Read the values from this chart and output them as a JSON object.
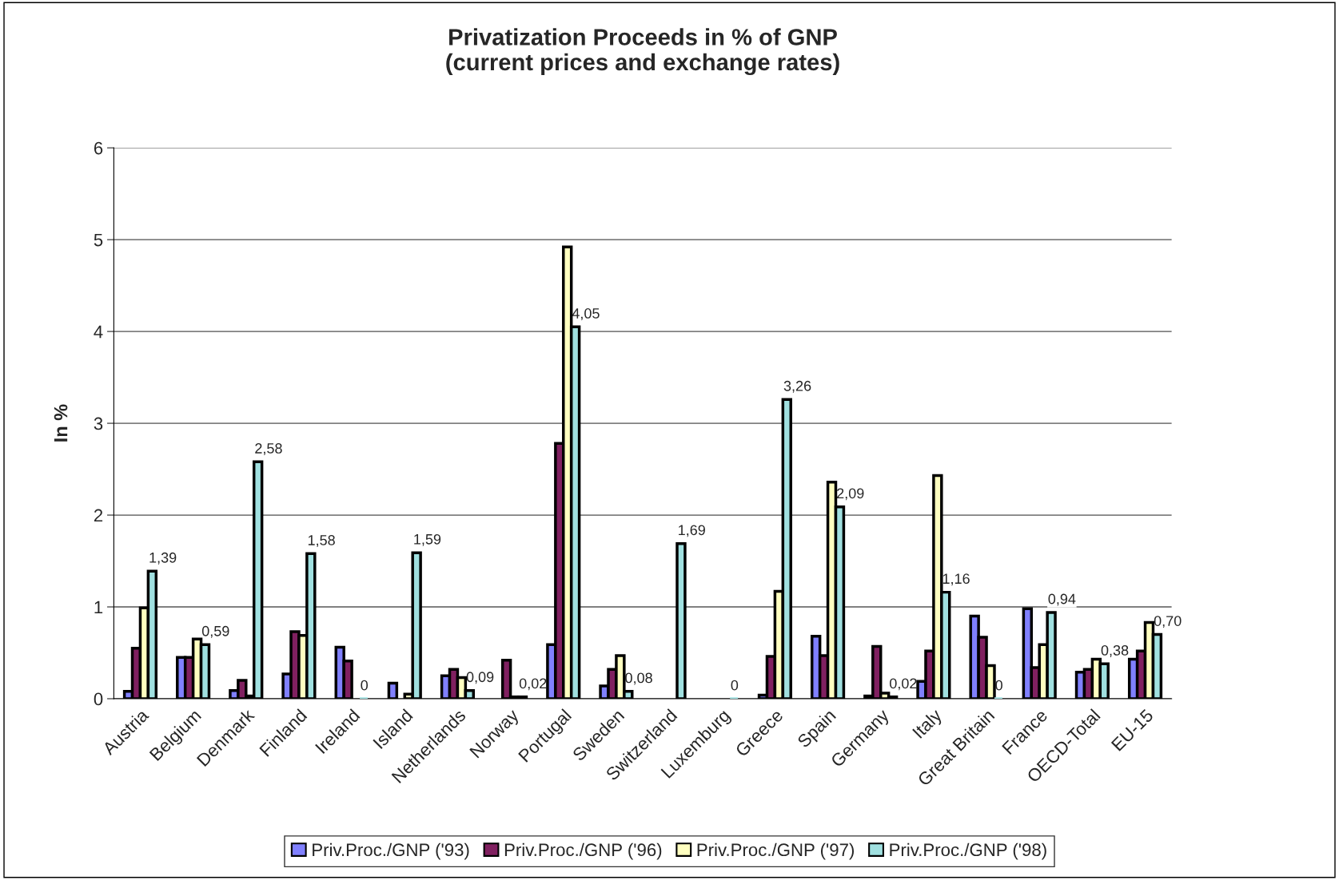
{
  "chart_data": {
    "type": "bar",
    "title": "Privatization Proceeds in % of GNP\n(current prices and exchange rates)",
    "ylabel": "In %",
    "categories": [
      "Austria",
      "Belgium",
      "Denmark",
      "Finland",
      "Ireland",
      "Island",
      "Netherlands",
      "Norway",
      "Portugal",
      "Sweden",
      "Switzerland",
      "Luxemburg",
      "Greece",
      "Spain",
      "Germany",
      "Italy",
      "Great Britain",
      "France",
      "OECD-Total",
      "EU-15"
    ],
    "series": [
      {
        "name": "Priv.Proc./GNP ('93)",
        "color": "#8080ff",
        "values": [
          0.08,
          0.45,
          0.09,
          0.27,
          0.56,
          0.17,
          0.25,
          null,
          0.59,
          0.14,
          null,
          null,
          0.04,
          0.68,
          0.03,
          0.19,
          0.9,
          0.98,
          0.29,
          0.43
        ]
      },
      {
        "name": "Priv.Proc./GNP ('96)",
        "color": "#802060",
        "values": [
          0.55,
          0.45,
          0.2,
          0.73,
          0.41,
          null,
          0.32,
          0.42,
          2.78,
          0.32,
          null,
          null,
          0.46,
          0.47,
          0.57,
          0.52,
          0.67,
          0.34,
          0.32,
          0.52
        ]
      },
      {
        "name": "Priv.Proc./GNP ('97)",
        "color": "#ffffc0",
        "values": [
          0.99,
          0.65,
          0.03,
          0.69,
          null,
          0.05,
          0.23,
          0.02,
          4.92,
          0.47,
          null,
          null,
          1.17,
          2.36,
          0.06,
          2.43,
          0.36,
          0.59,
          0.43,
          0.83
        ]
      },
      {
        "name": "Priv.Proc./GNP ('98)",
        "color": "#a0e0e0",
        "values": [
          1.39,
          0.59,
          2.58,
          1.58,
          0,
          1.59,
          0.09,
          0.02,
          4.05,
          0.08,
          1.69,
          0,
          3.26,
          2.09,
          0.02,
          1.16,
          0,
          0.94,
          0.38,
          0.7
        ],
        "value_labels": [
          "1,39",
          "0,59",
          "2,58",
          "1,58",
          "0",
          "1,59",
          "0,09",
          "0,02",
          "4,05",
          "0,08",
          "1,69",
          "0",
          "3,26",
          "2,09",
          "0,02",
          "1,16",
          "0",
          "0,94",
          "0,38",
          "0,70"
        ]
      }
    ],
    "ylim": [
      0,
      6
    ],
    "yticks": [
      0,
      1,
      2,
      3,
      4,
      5,
      6
    ],
    "grid": "y",
    "legend": "bottom"
  }
}
